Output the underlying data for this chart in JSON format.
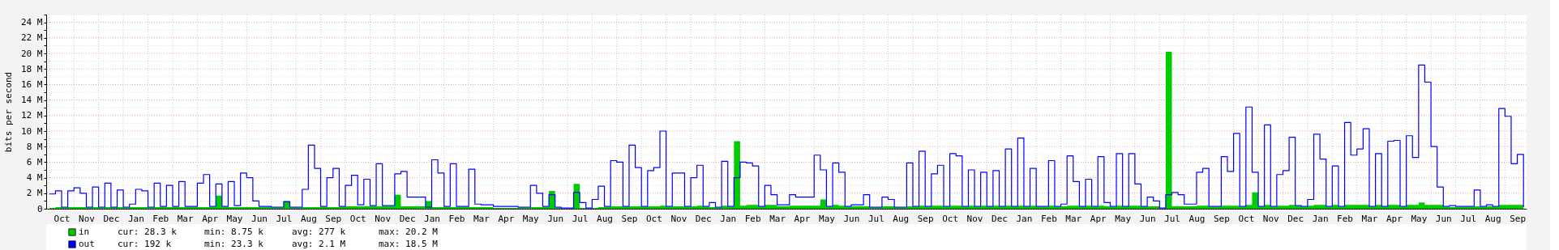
{
  "chart_data": {
    "type": "area",
    "ylabel": "bits per second",
    "categories": [
      null,
      null,
      "Oct",
      null,
      null,
      null,
      "Nov",
      null,
      null,
      null,
      "Dec",
      null,
      null,
      null,
      "Jan",
      null,
      null,
      null,
      "Feb",
      null,
      null,
      null,
      "Mar",
      null,
      null,
      null,
      "Apr",
      null,
      null,
      null,
      "May",
      null,
      null,
      null,
      "Jun",
      null,
      null,
      null,
      "Jul",
      null,
      null,
      null,
      "Aug",
      null,
      null,
      null,
      "Sep",
      null,
      null,
      null,
      "Oct",
      null,
      null,
      null,
      "Nov",
      null,
      null,
      null,
      "Dec",
      null,
      null,
      null,
      "Jan",
      null,
      null,
      null,
      "Feb",
      null,
      null,
      null,
      "Mar",
      null,
      null,
      null,
      "Apr",
      null,
      null,
      null,
      "May",
      null,
      null,
      null,
      "Jun",
      null,
      null,
      null,
      "Jul",
      null,
      null,
      null,
      "Aug",
      null,
      null,
      null,
      "Sep",
      null,
      null,
      null,
      "Oct",
      null,
      null,
      null,
      "Nov",
      null,
      null,
      null,
      "Dec",
      null,
      null,
      null,
      "Jan",
      null,
      null,
      null,
      "Feb",
      null,
      null,
      null,
      "Mar",
      null,
      null,
      null,
      "Apr",
      null,
      null,
      null,
      "May",
      null,
      null,
      null,
      "Jun",
      null,
      null,
      null,
      "Jul",
      null,
      null,
      null,
      "Aug",
      null,
      null,
      null,
      "Sep",
      null,
      null,
      null,
      "Oct",
      null,
      null,
      null,
      "Nov",
      null,
      null,
      null,
      "Dec",
      null,
      null,
      null,
      "Jan",
      null,
      null,
      null,
      "Feb",
      null,
      null,
      null,
      "Mar",
      null,
      null,
      null,
      "Apr",
      null,
      null,
      null,
      "May",
      null,
      null,
      null,
      "Jun",
      null,
      null,
      null,
      "Jul",
      null,
      null,
      null,
      "Aug",
      null,
      null,
      null,
      "Sep",
      null,
      null,
      null,
      "Oct",
      null,
      null,
      null,
      "Nov",
      null,
      null,
      null,
      "Dec",
      null,
      null,
      null,
      "Jan",
      null,
      null,
      null,
      "Feb",
      null,
      null,
      null,
      "Mar",
      null,
      null,
      null,
      "Apr",
      null,
      null,
      null,
      "May",
      null,
      null,
      null,
      "Jun",
      null,
      null,
      null,
      "Jul",
      null,
      null,
      null,
      "Aug",
      null,
      null,
      null,
      "Sep",
      null
    ],
    "ylim": [
      0,
      25
    ],
    "yticks": [
      0,
      {
        "value": 1,
        "label": null
      },
      {
        "value": 2,
        "label": "2 M"
      },
      {
        "value": 3,
        "label": null
      },
      {
        "value": 4,
        "label": "4 M"
      },
      {
        "value": 5,
        "label": null
      },
      {
        "value": 6,
        "label": "6 M"
      },
      {
        "value": 7,
        "label": null
      },
      {
        "value": 8,
        "label": "8 M"
      },
      {
        "value": 9,
        "label": null
      },
      {
        "value": 10,
        "label": "10 M"
      },
      {
        "value": 11,
        "label": null
      },
      {
        "value": 12,
        "label": "12 M"
      },
      {
        "value": 13,
        "label": null
      },
      {
        "value": 14,
        "label": "14 M"
      },
      {
        "value": 15,
        "label": null
      },
      {
        "value": 16,
        "label": "16 M"
      },
      {
        "value": 17,
        "label": null
      },
      {
        "value": 18,
        "label": "18 M"
      },
      {
        "value": 19,
        "label": null
      },
      {
        "value": 20,
        "label": "20 M"
      },
      {
        "value": 21,
        "label": null
      },
      {
        "value": 22,
        "label": "22 M"
      },
      {
        "value": 23,
        "label": null
      },
      {
        "value": 24,
        "label": "24 M"
      },
      {
        "value": 25,
        "label": null
      }
    ],
    "grid": true,
    "legend": "bottom",
    "annotations": [
      "cur: 28.3 k",
      "min: 8.75 k",
      "avg: 277 k",
      "max: 20.2 M",
      "cur: 192 k",
      "min: 23.3 k",
      "avg: 2.1 M",
      "max: 18.5 M"
    ],
    "series": [
      {
        "name": "in",
        "color": "#00cc00",
        "values": [
          0.1,
          0.2,
          0.1,
          0.2,
          0.2,
          0.2,
          0.1,
          0.2,
          0.1,
          0.2,
          0.1,
          0.2,
          0.1,
          0.2,
          0.2,
          0.2,
          0.1,
          0.2,
          0.2,
          0.2,
          0.2,
          0.2,
          0.2,
          0.2,
          0.2,
          0.2,
          0.2,
          1.7,
          0.2,
          0.2,
          0.2,
          0.2,
          0.2,
          0.2,
          0.2,
          0.2,
          0.1,
          0.1,
          1.0,
          0.1,
          0.1,
          0.2,
          0.2,
          0.2,
          0.2,
          0.2,
          0.2,
          0.2,
          0.3,
          0.3,
          0.3,
          0.3,
          0.3,
          0.3,
          0.3,
          0.3,
          1.8,
          0.3,
          0.3,
          0.3,
          0.3,
          1.0,
          0.2,
          0.2,
          0.2,
          0.2,
          0.2,
          0.2,
          0.2,
          0.2,
          0.2,
          0.2,
          0.1,
          0.1,
          0.1,
          0.1,
          0.1,
          0.1,
          0.2,
          0.2,
          0.2,
          2.3,
          0.1,
          0,
          0,
          3.2,
          0.1,
          0,
          0.1,
          0.2,
          0.2,
          0.3,
          0.3,
          0.2,
          0.3,
          0.3,
          0.2,
          0.3,
          0.3,
          0.4,
          0.2,
          0.3,
          0.3,
          0.2,
          0.3,
          0.4,
          0.2,
          0.2,
          0.1,
          0.4,
          0.2,
          8.7,
          0.4,
          0.5,
          0.5,
          0.2,
          0.5,
          0.5,
          0.3,
          0.3,
          0.4,
          0.4,
          0.4,
          0.4,
          0.4,
          1.2,
          0.2,
          0.5,
          0.4,
          0.2,
          0.3,
          0.3,
          0.3,
          0.1,
          0.1,
          0.3,
          0.3,
          0.1,
          0.1,
          0.3,
          0.2,
          0.4,
          0.2,
          0.4,
          0.4,
          0.2,
          0.4,
          0.4,
          0.2,
          0.4,
          0.2,
          0.4,
          0.2,
          0.4,
          0.2,
          0.4,
          0.2,
          0.4,
          0.2,
          0.4,
          0.2,
          0.2,
          0.4,
          0.2,
          0.3,
          0.4,
          0.4,
          0.2,
          0.4,
          0.2,
          0.4,
          0.3,
          0.2,
          0.4,
          0.2,
          0.4,
          0.4,
          0.2,
          0.3,
          0.3,
          0,
          20.2,
          0.3,
          0.3,
          0.3,
          0.3,
          0.4,
          0.4,
          0.2,
          0.2,
          0.4,
          0.4,
          0.4,
          0.2,
          0.5,
          2.1,
          0.2,
          0.5,
          0.2,
          0.4,
          0.4,
          0.5,
          0.3,
          0.2,
          0.4,
          0.5,
          0.5,
          0.2,
          0.5,
          0.2,
          0.5,
          0.5,
          0.5,
          0.5,
          0.2,
          0.5,
          0.2,
          0.5,
          0.5,
          0.2,
          0.5,
          0.5,
          0.8,
          0.5,
          0.5,
          0.5,
          0.2,
          0.2,
          0.2,
          0.2,
          0.2,
          0.3,
          0.2,
          0.3,
          0.2,
          0.5,
          0.5,
          0.5,
          0.5,
          0
        ]
      },
      {
        "name": "out",
        "type": "step",
        "color": "#0000ff",
        "values": [
          1.9,
          2.3,
          0.2,
          2.3,
          2.7,
          2.0,
          0.2,
          2.8,
          0.2,
          3.3,
          0.2,
          2.4,
          0.2,
          0.6,
          2.5,
          2.3,
          0.2,
          3.3,
          0.3,
          3.0,
          0.3,
          3.5,
          0.3,
          0.3,
          3.3,
          4.4,
          0.3,
          3.2,
          0.3,
          3.5,
          0.4,
          4.6,
          4.0,
          1.0,
          0.3,
          0.3,
          0.2,
          0.2,
          0.9,
          0.2,
          0.2,
          2.5,
          8.2,
          5.2,
          0.3,
          4.0,
          5.2,
          0.3,
          3.0,
          4.3,
          0.5,
          3.8,
          0.4,
          5.8,
          0.4,
          0.4,
          4.5,
          4.8,
          1.5,
          1.5,
          1.5,
          0.2,
          6.3,
          4.6,
          0.3,
          5.8,
          0.3,
          0.3,
          5.1,
          0.6,
          0.5,
          0.5,
          0.3,
          0.3,
          0.3,
          0.3,
          0.2,
          0.2,
          3.0,
          2.0,
          0.3,
          1.8,
          0.2,
          0.1,
          0.1,
          2.1,
          0.8,
          0.1,
          1.2,
          2.9,
          0.3,
          6.2,
          6.0,
          0.3,
          8.2,
          5.3,
          0.3,
          4.9,
          5.3,
          10.0,
          0.3,
          4.6,
          4.6,
          0.3,
          4.0,
          5.6,
          0.3,
          0.8,
          0.2,
          6.1,
          0.3,
          4.0,
          6.0,
          5.9,
          5.5,
          0.3,
          3.0,
          1.8,
          0.5,
          0.5,
          1.8,
          1.5,
          1.5,
          1.5,
          6.9,
          5.0,
          0.3,
          5.9,
          4.7,
          0.3,
          0.5,
          0.5,
          1.8,
          0.2,
          0.2,
          1.5,
          1.2,
          0.2,
          0.2,
          5.9,
          0.3,
          7.4,
          0.3,
          4.5,
          5.6,
          0.3,
          7.1,
          6.8,
          0.3,
          5.0,
          0.3,
          4.7,
          0.3,
          4.9,
          0.3,
          7.7,
          0.3,
          9.1,
          0.3,
          5.2,
          0.3,
          0.3,
          6.2,
          0.3,
          0.6,
          6.8,
          3.5,
          0.3,
          3.8,
          0.3,
          6.7,
          0.8,
          0.3,
          7.1,
          0.3,
          7.1,
          3.2,
          0.3,
          1.5,
          1.0,
          0.1,
          1.8,
          2.1,
          1.8,
          0.6,
          0.6,
          4.7,
          5.2,
          0.3,
          0.3,
          6.7,
          4.8,
          9.7,
          0.3,
          13.1,
          4.7,
          0.3,
          10.8,
          0.3,
          4.4,
          4.9,
          9.2,
          0.4,
          0.3,
          1.2,
          9.6,
          6.4,
          0.3,
          5.5,
          0.3,
          11.1,
          6.9,
          7.7,
          10.3,
          0.3,
          7.1,
          0.3,
          8.7,
          8.8,
          0.3,
          9.4,
          6.6,
          18.5,
          16.3,
          8.0,
          2.8,
          0.3,
          0.4,
          0.3,
          0.3,
          0.3,
          2.4,
          0.3,
          0.5,
          0.3,
          12.9,
          11.9,
          5.8,
          7.0,
          0.2
        ]
      }
    ]
  }
}
